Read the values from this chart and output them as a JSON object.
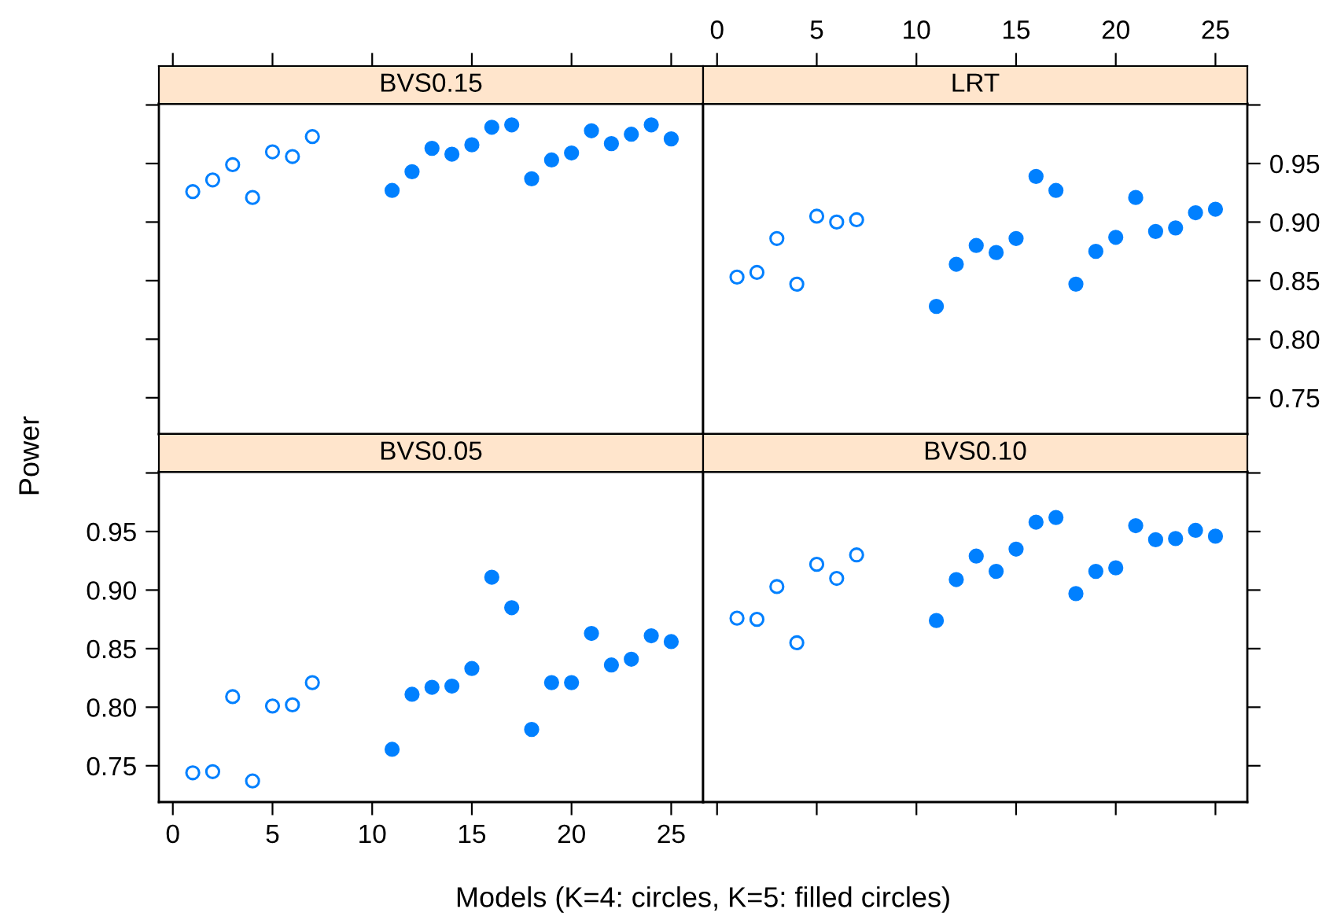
{
  "chart_data": [
    {
      "type": "scatter",
      "title": "BVS0.15",
      "xlim": [
        -0.7,
        26.6
      ],
      "xticks": [
        0,
        5,
        10,
        15,
        20,
        25
      ],
      "ylim": [
        0.719,
        1.001
      ],
      "yticks": [
        0.75,
        0.8,
        0.85,
        0.9,
        0.95,
        1.0
      ],
      "tick_labels": false,
      "grid": false,
      "marker": "circle",
      "series": [
        {
          "color": "#0080ff",
          "x": [
            1,
            2,
            3,
            4,
            5,
            6,
            7
          ],
          "values": [
            0.926,
            0.936,
            0.949,
            0.921,
            0.96,
            0.956,
            0.973
          ]
        },
        {
          "color": "#0080ff",
          "x": [
            11,
            12,
            13,
            14,
            15,
            16,
            17,
            18,
            19,
            20,
            21,
            22,
            23,
            24,
            25
          ],
          "values": [
            0.927,
            0.943,
            0.963,
            0.958,
            0.966,
            0.981,
            0.983,
            0.937,
            0.953,
            0.959,
            0.978,
            0.967,
            0.975,
            0.983,
            0.971
          ]
        }
      ]
    },
    {
      "type": "scatter",
      "title": "LRT",
      "xlim": [
        -0.7,
        26.6
      ],
      "xticks": [
        0,
        5,
        10,
        15,
        20,
        25
      ],
      "ylim": [
        0.719,
        1.001
      ],
      "yticks": [
        0.75,
        {
          "value": 0.8,
          "label": "0.80"
        },
        0.85,
        {
          "value": 0.9,
          "label": "0.90"
        },
        0.95,
        {
          "value": 1.0,
          "label": null
        }
      ],
      "grid": false,
      "marker": "circle",
      "series": [
        {
          "color": "#0080ff",
          "x": [
            1,
            2,
            3,
            4,
            5,
            6,
            7
          ],
          "values": [
            0.853,
            0.857,
            0.886,
            0.847,
            0.905,
            0.9,
            0.902
          ]
        },
        {
          "color": "#0080ff",
          "x": [
            11,
            12,
            13,
            14,
            15,
            16,
            17,
            18,
            19,
            20,
            21,
            22,
            23,
            24,
            25
          ],
          "values": [
            0.828,
            0.864,
            0.88,
            0.874,
            0.886,
            0.939,
            0.927,
            0.847,
            0.875,
            0.887,
            0.921,
            0.892,
            0.895,
            0.908,
            0.911
          ]
        }
      ]
    },
    {
      "type": "scatter",
      "title": "BVS0.05",
      "xlabel": "Models (K=4: circles, K=5: filled circles)",
      "ylabel": "Power",
      "xlim": [
        -0.7,
        26.6
      ],
      "xticks": [
        0,
        5,
        10,
        15,
        20,
        25
      ],
      "ylim": [
        0.719,
        1.001
      ],
      "yticks": [
        0.75,
        {
          "value": 0.8,
          "label": "0.80"
        },
        0.85,
        {
          "value": 0.9,
          "label": "0.90"
        },
        0.95,
        {
          "value": 1.0,
          "label": null
        }
      ],
      "grid": false,
      "marker": "circle",
      "series": [
        {
          "color": "#0080ff",
          "x": [
            1,
            2,
            3,
            4,
            5,
            6,
            7
          ],
          "values": [
            0.744,
            0.745,
            0.809,
            0.737,
            0.801,
            0.802,
            0.821
          ]
        },
        {
          "color": "#0080ff",
          "x": [
            11,
            12,
            13,
            14,
            15,
            16,
            17,
            18,
            19,
            20,
            21,
            22,
            23,
            24,
            25
          ],
          "values": [
            0.764,
            0.811,
            0.817,
            0.818,
            0.833,
            0.911,
            0.885,
            0.781,
            0.821,
            0.821,
            0.863,
            0.836,
            0.841,
            0.861,
            0.856
          ]
        }
      ]
    },
    {
      "type": "scatter",
      "title": "BVS0.10",
      "xlim": [
        -0.7,
        26.6
      ],
      "xticks": [
        0,
        5,
        10,
        15,
        20,
        25
      ],
      "ylim": [
        0.719,
        1.001
      ],
      "yticks": [
        0.75,
        0.8,
        0.85,
        0.9,
        0.95,
        1.0
      ],
      "tick_labels": false,
      "grid": false,
      "marker": "circle",
      "series": [
        {
          "color": "#0080ff",
          "x": [
            1,
            2,
            3,
            4,
            5,
            6,
            7
          ],
          "values": [
            0.876,
            0.875,
            0.903,
            0.855,
            0.922,
            0.91,
            0.93
          ]
        },
        {
          "color": "#0080ff",
          "x": [
            11,
            12,
            13,
            14,
            15,
            16,
            17,
            18,
            19,
            20,
            21,
            22,
            23,
            24,
            25
          ],
          "values": [
            0.874,
            0.909,
            0.929,
            0.916,
            0.935,
            0.958,
            0.962,
            0.897,
            0.916,
            0.919,
            0.955,
            0.943,
            0.944,
            0.951,
            0.946
          ]
        }
      ]
    }
  ]
}
